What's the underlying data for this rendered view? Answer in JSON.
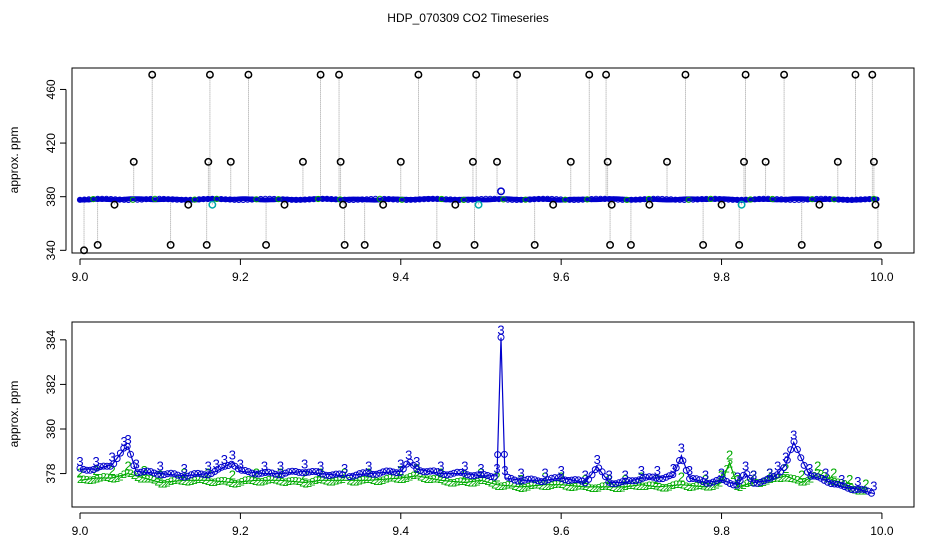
{
  "title": "HDP_070309  CO2 Timeseries",
  "chart_data": [
    {
      "type": "scatter",
      "ylabel": "approx. ppm",
      "xlabel": "",
      "xlim": [
        8.99,
        10.04
      ],
      "ylim": [
        338,
        476
      ],
      "x_ticks": [
        "9.0",
        "9.2",
        "9.4",
        "9.6",
        "9.8",
        "10.0"
      ],
      "y_ticks": [
        "340",
        "380",
        "420",
        "460"
      ],
      "baseline": 378,
      "grid": false,
      "spike_markers": [
        {
          "x": 9.005,
          "y": 340,
          "c": "#000"
        },
        {
          "x": 9.022,
          "y": 344,
          "c": "#000"
        },
        {
          "x": 9.043,
          "y": 374,
          "c": "#000"
        },
        {
          "x": 9.067,
          "y": 406,
          "c": "#000"
        },
        {
          "x": 9.09,
          "y": 471,
          "c": "#000"
        },
        {
          "x": 9.113,
          "y": 344,
          "c": "#000"
        },
        {
          "x": 9.135,
          "y": 374,
          "c": "#000"
        },
        {
          "x": 9.158,
          "y": 344,
          "c": "#000"
        },
        {
          "x": 9.16,
          "y": 406,
          "c": "#000"
        },
        {
          "x": 9.162,
          "y": 471,
          "c": "#000"
        },
        {
          "x": 9.165,
          "y": 374,
          "c": "#0aa"
        },
        {
          "x": 9.188,
          "y": 406,
          "c": "#000"
        },
        {
          "x": 9.21,
          "y": 471,
          "c": "#000"
        },
        {
          "x": 9.232,
          "y": 344,
          "c": "#000"
        },
        {
          "x": 9.255,
          "y": 374,
          "c": "#000"
        },
        {
          "x": 9.278,
          "y": 406,
          "c": "#000"
        },
        {
          "x": 9.3,
          "y": 471,
          "c": "#000"
        },
        {
          "x": 9.323,
          "y": 471,
          "c": "#000"
        },
        {
          "x": 9.325,
          "y": 406,
          "c": "#000"
        },
        {
          "x": 9.328,
          "y": 374,
          "c": "#000"
        },
        {
          "x": 9.33,
          "y": 344,
          "c": "#000"
        },
        {
          "x": 9.355,
          "y": 344,
          "c": "#000"
        },
        {
          "x": 9.378,
          "y": 374,
          "c": "#000"
        },
        {
          "x": 9.4,
          "y": 406,
          "c": "#000"
        },
        {
          "x": 9.422,
          "y": 471,
          "c": "#000"
        },
        {
          "x": 9.445,
          "y": 344,
          "c": "#000"
        },
        {
          "x": 9.468,
          "y": 374,
          "c": "#000"
        },
        {
          "x": 9.49,
          "y": 406,
          "c": "#000"
        },
        {
          "x": 9.492,
          "y": 344,
          "c": "#000"
        },
        {
          "x": 9.494,
          "y": 471,
          "c": "#000"
        },
        {
          "x": 9.497,
          "y": 374,
          "c": "#0aa"
        },
        {
          "x": 9.52,
          "y": 406,
          "c": "#000"
        },
        {
          "x": 9.525,
          "y": 384,
          "c": "#00c"
        },
        {
          "x": 9.545,
          "y": 471,
          "c": "#000"
        },
        {
          "x": 9.567,
          "y": 344,
          "c": "#000"
        },
        {
          "x": 9.59,
          "y": 374,
          "c": "#000"
        },
        {
          "x": 9.612,
          "y": 406,
          "c": "#000"
        },
        {
          "x": 9.635,
          "y": 471,
          "c": "#000"
        },
        {
          "x": 9.656,
          "y": 471,
          "c": "#000"
        },
        {
          "x": 9.658,
          "y": 406,
          "c": "#000"
        },
        {
          "x": 9.661,
          "y": 344,
          "c": "#000"
        },
        {
          "x": 9.663,
          "y": 374,
          "c": "#000"
        },
        {
          "x": 9.687,
          "y": 344,
          "c": "#000"
        },
        {
          "x": 9.71,
          "y": 374,
          "c": "#000"
        },
        {
          "x": 9.732,
          "y": 406,
          "c": "#000"
        },
        {
          "x": 9.755,
          "y": 471,
          "c": "#000"
        },
        {
          "x": 9.777,
          "y": 344,
          "c": "#000"
        },
        {
          "x": 9.8,
          "y": 374,
          "c": "#000"
        },
        {
          "x": 9.822,
          "y": 344,
          "c": "#000"
        },
        {
          "x": 9.825,
          "y": 374,
          "c": "#0aa"
        },
        {
          "x": 9.828,
          "y": 406,
          "c": "#000"
        },
        {
          "x": 9.83,
          "y": 471,
          "c": "#000"
        },
        {
          "x": 9.855,
          "y": 406,
          "c": "#000"
        },
        {
          "x": 9.878,
          "y": 471,
          "c": "#000"
        },
        {
          "x": 9.9,
          "y": 344,
          "c": "#000"
        },
        {
          "x": 9.922,
          "y": 374,
          "c": "#000"
        },
        {
          "x": 9.945,
          "y": 406,
          "c": "#000"
        },
        {
          "x": 9.967,
          "y": 471,
          "c": "#000"
        },
        {
          "x": 9.988,
          "y": 471,
          "c": "#000"
        },
        {
          "x": 9.99,
          "y": 406,
          "c": "#000"
        },
        {
          "x": 9.992,
          "y": 374,
          "c": "#000"
        },
        {
          "x": 9.995,
          "y": 344,
          "c": "#000"
        }
      ]
    },
    {
      "type": "line",
      "ylabel": "approx. ppm",
      "xlabel": "",
      "xlim": [
        8.99,
        10.04
      ],
      "ylim": [
        376.5,
        384.8
      ],
      "x_ticks": [
        "9.0",
        "9.2",
        "9.4",
        "9.6",
        "9.8",
        "10.0"
      ],
      "y_ticks": [
        "378",
        "380",
        "382",
        "384"
      ],
      "grid": false,
      "series": [
        {
          "name": "",
          "color": "#0000cc",
          "label": "3",
          "x": [
            9.0,
            9.02,
            9.04,
            9.055,
            9.06,
            9.07,
            9.1,
            9.13,
            9.16,
            9.17,
            9.18,
            9.19,
            9.2,
            9.23,
            9.25,
            9.28,
            9.3,
            9.33,
            9.36,
            9.4,
            9.41,
            9.42,
            9.45,
            9.48,
            9.5,
            9.52,
            9.525,
            9.53,
            9.55,
            9.58,
            9.6,
            9.63,
            9.645,
            9.66,
            9.68,
            9.7,
            9.72,
            9.74,
            9.75,
            9.76,
            9.78,
            9.8,
            9.82,
            9.83,
            9.84,
            9.86,
            9.87,
            9.88,
            9.89,
            9.91,
            9.93,
            9.95,
            9.97,
            9.99
          ],
          "y": [
            378.2,
            378.2,
            378.4,
            379.1,
            379.2,
            378.1,
            378.0,
            377.9,
            378.0,
            378.1,
            378.3,
            378.5,
            378.1,
            378.0,
            378.0,
            378.1,
            378.0,
            377.9,
            378.0,
            378.1,
            378.5,
            378.2,
            378.0,
            378.0,
            377.9,
            377.9,
            384.1,
            377.8,
            377.7,
            377.7,
            377.8,
            377.6,
            378.3,
            377.6,
            377.6,
            377.8,
            377.8,
            377.9,
            378.8,
            377.8,
            377.6,
            377.7,
            377.5,
            378.0,
            377.6,
            377.7,
            378.0,
            378.4,
            379.4,
            377.9,
            377.7,
            377.4,
            377.3,
            377.1
          ]
        },
        {
          "name": "",
          "color": "#00aa00",
          "label": "2",
          "x": [
            9.0,
            9.02,
            9.04,
            9.06,
            9.08,
            9.1,
            9.13,
            9.16,
            9.19,
            9.22,
            9.25,
            9.28,
            9.3,
            9.33,
            9.36,
            9.4,
            9.42,
            9.45,
            9.48,
            9.5,
            9.52,
            9.55,
            9.58,
            9.6,
            9.63,
            9.66,
            9.68,
            9.7,
            9.72,
            9.75,
            9.78,
            9.8,
            9.81,
            9.82,
            9.84,
            9.86,
            9.88,
            9.9,
            9.92,
            9.94,
            9.96,
            9.98
          ],
          "y": [
            377.7,
            377.8,
            377.8,
            378.0,
            377.8,
            377.6,
            377.7,
            377.7,
            377.6,
            377.7,
            377.7,
            377.6,
            377.7,
            377.7,
            377.7,
            377.8,
            377.9,
            377.7,
            377.6,
            377.7,
            377.5,
            377.4,
            377.5,
            377.5,
            377.4,
            377.4,
            377.4,
            377.5,
            377.4,
            377.5,
            377.4,
            377.6,
            378.5,
            377.4,
            377.6,
            377.7,
            377.9,
            377.6,
            378.0,
            377.7,
            377.4,
            377.2
          ]
        }
      ]
    }
  ]
}
